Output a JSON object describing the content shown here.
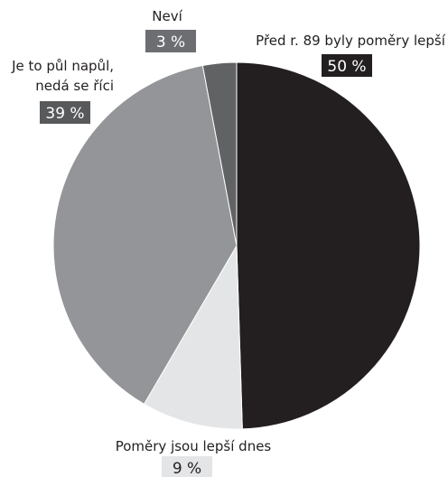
{
  "chart_data": {
    "type": "pie",
    "slices": [
      {
        "label": "Před r. 89 byly poměry lepší",
        "label_lines": [
          "Před r. 89 byly poměry lepší"
        ],
        "value": 50,
        "value_label": "50 %",
        "color": "#231f20",
        "badge_color": "#231f20"
      },
      {
        "label": "Poměry jsou lepší dnes",
        "label_lines": [
          "Poměry jsou lepší dnes"
        ],
        "value": 9,
        "value_label": "9 %",
        "color": "#e4e5e6",
        "badge_color": "#e4e5e6"
      },
      {
        "label": "Je to půl napůl, nedá se říci",
        "label_lines": [
          "Je to půl napůl,",
          "nedá se říci"
        ],
        "value": 39,
        "value_label": "39 %",
        "color": "#939598",
        "badge_color": "#58595b"
      },
      {
        "label": "Neví",
        "label_lines": [
          "Neví"
        ],
        "value": 3,
        "value_label": "3 %",
        "color": "#616264",
        "badge_color": "#6d6e71"
      }
    ],
    "start_angle": "12 o'clock",
    "direction": "clockwise",
    "legend": "none"
  }
}
